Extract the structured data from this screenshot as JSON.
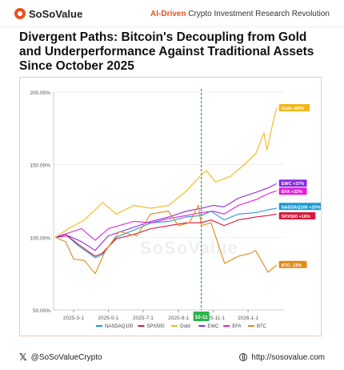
{
  "header": {
    "brand": "SoSoValue",
    "tagline_accent": "AI-Driven",
    "tagline_rest": " Crypto Investment Research Revolution"
  },
  "title": "Divergent Paths: Bitcoin's Decoupling from Gold and Underperformance Against Traditional Assets Since October 2025",
  "watermark": "SoSoValue",
  "footer": {
    "social_handle": "@SoSoValueCrypto",
    "website": "http://sosovalue.com"
  },
  "chart_data": {
    "type": "line",
    "title": "",
    "xlabel": "",
    "ylabel": "",
    "ylim": [
      50,
      200
    ],
    "y_ticks": [
      {
        "value": 200,
        "label": "200.00%"
      },
      {
        "value": 150,
        "label": "150.00%"
      },
      {
        "value": 100,
        "label": "100.00%"
      },
      {
        "value": 50,
        "label": "50.00%"
      }
    ],
    "x_ticks": [
      "2025-3-1",
      "2025-5-1",
      "2025-7-1",
      "2025-9-1",
      "2025-11-1",
      "2026-1-1"
    ],
    "x_tick_dates": [
      "2025-03-01",
      "2025-05-01",
      "2025-07-01",
      "2025-09-01",
      "2025-11-01",
      "2026-01-01"
    ],
    "x_range": [
      "2025-01-25",
      "2026-03-05"
    ],
    "marker": {
      "date": "2025-10-11",
      "label": "10-11",
      "color": "#2bb34a"
    },
    "legend_position": "bottom",
    "series": [
      {
        "name": "NASDAQ100",
        "color": "#1a9ad6",
        "end_label": "NASDAQ100 +20%",
        "points": [
          [
            "2025-01-28",
            100
          ],
          [
            "2025-02-15",
            102
          ],
          [
            "2025-03-10",
            94
          ],
          [
            "2025-04-08",
            86
          ],
          [
            "2025-04-20",
            88
          ],
          [
            "2025-05-15",
            100
          ],
          [
            "2025-06-15",
            105
          ],
          [
            "2025-07-15",
            110
          ],
          [
            "2025-08-15",
            111
          ],
          [
            "2025-09-15",
            114
          ],
          [
            "2025-10-11",
            115
          ],
          [
            "2025-10-28",
            118
          ],
          [
            "2025-11-20",
            112
          ],
          [
            "2025-12-15",
            116
          ],
          [
            "2026-01-15",
            117
          ],
          [
            "2026-02-05",
            119
          ],
          [
            "2026-02-20",
            120
          ]
        ]
      },
      {
        "name": "SPX500",
        "color": "#d81a3c",
        "end_label": "SPX500 +16%",
        "points": [
          [
            "2025-01-28",
            100
          ],
          [
            "2025-02-15",
            102
          ],
          [
            "2025-03-10",
            95
          ],
          [
            "2025-04-08",
            87
          ],
          [
            "2025-04-20",
            89
          ],
          [
            "2025-05-15",
            99
          ],
          [
            "2025-06-15",
            102
          ],
          [
            "2025-07-15",
            106
          ],
          [
            "2025-08-15",
            108
          ],
          [
            "2025-09-15",
            110
          ],
          [
            "2025-10-11",
            110
          ],
          [
            "2025-10-28",
            112
          ],
          [
            "2025-11-20",
            108
          ],
          [
            "2025-12-15",
            112
          ],
          [
            "2026-01-15",
            114
          ],
          [
            "2026-02-05",
            115
          ],
          [
            "2026-02-20",
            116
          ]
        ]
      },
      {
        "name": "Gold",
        "color": "#f2b81a",
        "end_label": "Gold +89%",
        "points": [
          [
            "2025-01-28",
            100
          ],
          [
            "2025-02-20",
            106
          ],
          [
            "2025-03-20",
            112
          ],
          [
            "2025-04-21",
            124
          ],
          [
            "2025-05-15",
            116
          ],
          [
            "2025-06-15",
            122
          ],
          [
            "2025-07-15",
            120
          ],
          [
            "2025-08-15",
            122
          ],
          [
            "2025-09-15",
            132
          ],
          [
            "2025-10-11",
            143
          ],
          [
            "2025-10-20",
            146
          ],
          [
            "2025-11-05",
            138
          ],
          [
            "2025-12-01",
            142
          ],
          [
            "2025-12-25",
            150
          ],
          [
            "2026-01-15",
            158
          ],
          [
            "2026-01-29",
            172
          ],
          [
            "2026-02-03",
            160
          ],
          [
            "2026-02-12",
            176
          ],
          [
            "2026-02-20",
            189
          ]
        ]
      },
      {
        "name": "EWC",
        "color": "#8a2be2",
        "end_label": "EWC +37%",
        "points": [
          [
            "2025-01-28",
            100
          ],
          [
            "2025-02-20",
            101
          ],
          [
            "2025-03-15",
            97
          ],
          [
            "2025-04-08",
            91
          ],
          [
            "2025-05-01",
            101
          ],
          [
            "2025-06-15",
            107
          ],
          [
            "2025-07-15",
            111
          ],
          [
            "2025-08-15",
            114
          ],
          [
            "2025-09-15",
            118
          ],
          [
            "2025-10-11",
            120
          ],
          [
            "2025-11-01",
            122
          ],
          [
            "2025-11-20",
            121
          ],
          [
            "2025-12-15",
            127
          ],
          [
            "2026-01-15",
            131
          ],
          [
            "2026-02-05",
            134
          ],
          [
            "2026-02-20",
            137
          ]
        ]
      },
      {
        "name": "EFA",
        "color": "#e020d8",
        "end_label": "EFA +32%",
        "points": [
          [
            "2025-01-28",
            100
          ],
          [
            "2025-02-20",
            103
          ],
          [
            "2025-03-15",
            106
          ],
          [
            "2025-04-08",
            98
          ],
          [
            "2025-05-01",
            106
          ],
          [
            "2025-06-15",
            111
          ],
          [
            "2025-07-15",
            110
          ],
          [
            "2025-08-15",
            113
          ],
          [
            "2025-09-15",
            115
          ],
          [
            "2025-10-11",
            117
          ],
          [
            "2025-11-01",
            118
          ],
          [
            "2025-11-20",
            116
          ],
          [
            "2025-12-15",
            122
          ],
          [
            "2026-01-15",
            126
          ],
          [
            "2026-02-05",
            130
          ],
          [
            "2026-02-20",
            132
          ]
        ]
      },
      {
        "name": "BTC",
        "color": "#e08a1a",
        "end_label": "BTC -19%",
        "points": [
          [
            "2025-01-28",
            100
          ],
          [
            "2025-02-15",
            97
          ],
          [
            "2025-03-01",
            85
          ],
          [
            "2025-03-20",
            84
          ],
          [
            "2025-04-08",
            75
          ],
          [
            "2025-04-25",
            90
          ],
          [
            "2025-05-20",
            104
          ],
          [
            "2025-06-20",
            101
          ],
          [
            "2025-07-14",
            116
          ],
          [
            "2025-08-14",
            118
          ],
          [
            "2025-09-01",
            108
          ],
          [
            "2025-09-20",
            110
          ],
          [
            "2025-10-06",
            122
          ],
          [
            "2025-10-11",
            108
          ],
          [
            "2025-10-28",
            110
          ],
          [
            "2025-11-21",
            82
          ],
          [
            "2025-12-15",
            87
          ],
          [
            "2026-01-05",
            89
          ],
          [
            "2026-01-14",
            91
          ],
          [
            "2026-02-05",
            76
          ],
          [
            "2026-02-20",
            81
          ]
        ]
      }
    ]
  }
}
